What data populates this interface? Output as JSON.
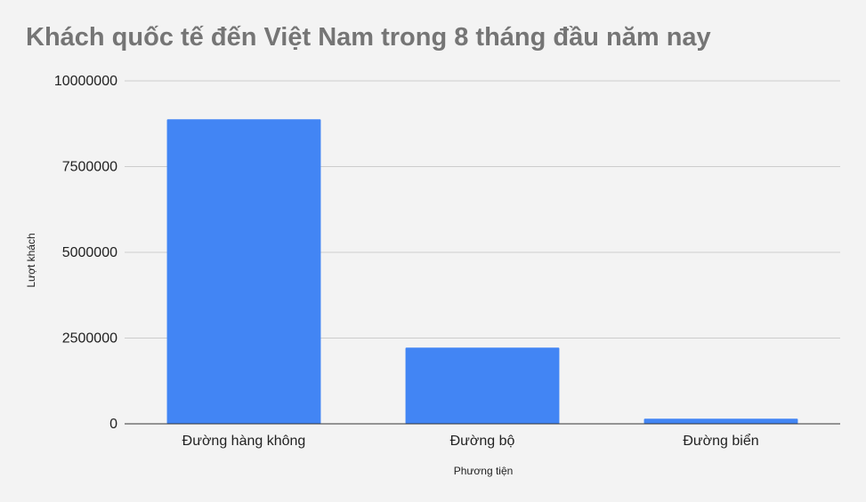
{
  "chart_data": {
    "type": "bar",
    "title": "Khách quốc tế đến Việt Nam trong 8 tháng đầu năm nay",
    "xlabel": "Phương tiện",
    "ylabel": "Lượt khách",
    "categories": [
      "Đường hàng không",
      "Đường bộ",
      "Đường biển"
    ],
    "values": [
      8880000,
      2220000,
      150000
    ],
    "ylim": [
      0,
      10000000
    ],
    "yticks": [
      0,
      2500000,
      5000000,
      7500000,
      10000000
    ],
    "ytick_labels": [
      "0",
      "2500000",
      "5000000",
      "7500000",
      "10000000"
    ],
    "grid": true,
    "legend": "none",
    "colors": {
      "bar": "#4285f4",
      "grid": "#cccccc",
      "axis": "#333333",
      "title": "#757575",
      "background": "#f3f3f3"
    }
  }
}
